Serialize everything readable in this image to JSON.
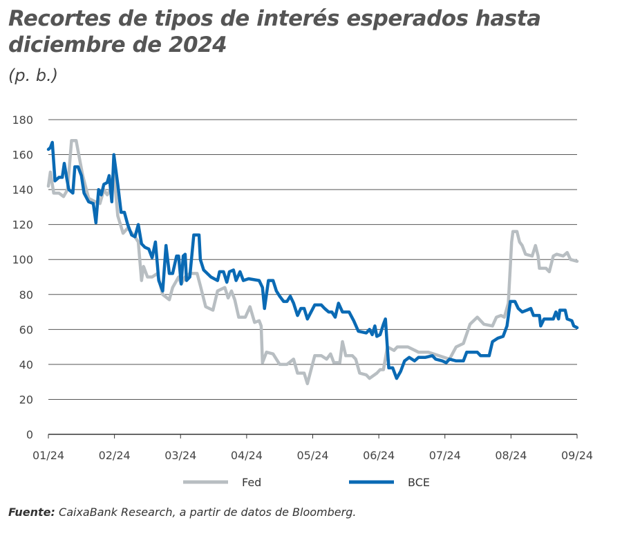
{
  "chart_data": {
    "type": "line",
    "title": "Recortes de tipos de interés esperados hasta diciembre de 2024",
    "unit": "(p. b.)",
    "xlabel": "",
    "ylabel": "",
    "ylim": [
      0,
      180
    ],
    "yticks": [
      0,
      20,
      40,
      60,
      80,
      100,
      120,
      140,
      160,
      180
    ],
    "x_unit": "months since 01/24",
    "xlim": [
      0,
      8
    ],
    "xtick_labels": [
      "01/24",
      "02/24",
      "03/24",
      "04/24",
      "05/24",
      "06/24",
      "07/24",
      "08/24",
      "09/24"
    ],
    "grid": true,
    "legend_position": "bottom",
    "series": [
      {
        "name": "Fed",
        "color": "#b8bec2",
        "points": [
          [
            0,
            142
          ],
          [
            0.03,
            150
          ],
          [
            0.08,
            138
          ],
          [
            0.16,
            138
          ],
          [
            0.23,
            136
          ],
          [
            0.29,
            140
          ],
          [
            0.35,
            168
          ],
          [
            0.42,
            168
          ],
          [
            0.47,
            158
          ],
          [
            0.52,
            148
          ],
          [
            0.61,
            135
          ],
          [
            0.71,
            133
          ],
          [
            0.78,
            132
          ],
          [
            0.84,
            140
          ],
          [
            0.89,
            137
          ],
          [
            0.94,
            140
          ],
          [
            0.99,
            150
          ],
          [
            1.05,
            125
          ],
          [
            1.13,
            115
          ],
          [
            1.2,
            118
          ],
          [
            1.31,
            113
          ],
          [
            1.36,
            110
          ],
          [
            1.41,
            88
          ],
          [
            1.44,
            96
          ],
          [
            1.5,
            90
          ],
          [
            1.57,
            90
          ],
          [
            1.65,
            92
          ],
          [
            1.73,
            80
          ],
          [
            1.83,
            77
          ],
          [
            1.88,
            84
          ],
          [
            1.97,
            90
          ],
          [
            2.01,
            86
          ],
          [
            2.07,
            90
          ],
          [
            2.14,
            92
          ],
          [
            2.25,
            92
          ],
          [
            2.3,
            85
          ],
          [
            2.38,
            73
          ],
          [
            2.49,
            71
          ],
          [
            2.56,
            82
          ],
          [
            2.67,
            84
          ],
          [
            2.72,
            78
          ],
          [
            2.77,
            82
          ],
          [
            2.82,
            77
          ],
          [
            2.88,
            67
          ],
          [
            2.98,
            67
          ],
          [
            3.05,
            73
          ],
          [
            3.12,
            64
          ],
          [
            3.19,
            65
          ],
          [
            3.22,
            62
          ],
          [
            3.24,
            41
          ],
          [
            3.3,
            47
          ],
          [
            3.4,
            46
          ],
          [
            3.5,
            40
          ],
          [
            3.61,
            40
          ],
          [
            3.71,
            43
          ],
          [
            3.77,
            35
          ],
          [
            3.87,
            35
          ],
          [
            3.92,
            29
          ],
          [
            4.03,
            45
          ],
          [
            4.13,
            45
          ],
          [
            4.21,
            43
          ],
          [
            4.27,
            46
          ],
          [
            4.32,
            41
          ],
          [
            4.41,
            41
          ],
          [
            4.45,
            53
          ],
          [
            4.5,
            45
          ],
          [
            4.6,
            45
          ],
          [
            4.65,
            43
          ],
          [
            4.71,
            35
          ],
          [
            4.81,
            34
          ],
          [
            4.86,
            32
          ],
          [
            4.97,
            35
          ],
          [
            5.02,
            37
          ],
          [
            5.07,
            37
          ],
          [
            5.13,
            50
          ],
          [
            5.23,
            48
          ],
          [
            5.28,
            50
          ],
          [
            5.44,
            50
          ],
          [
            5.6,
            47
          ],
          [
            5.75,
            47
          ],
          [
            5.91,
            45
          ],
          [
            6.07,
            43
          ],
          [
            6.17,
            50
          ],
          [
            6.28,
            52
          ],
          [
            6.38,
            63
          ],
          [
            6.49,
            67
          ],
          [
            6.59,
            63
          ],
          [
            6.72,
            62
          ],
          [
            6.78,
            67
          ],
          [
            6.85,
            68
          ],
          [
            6.9,
            67
          ],
          [
            6.96,
            75
          ],
          [
            7.01,
            110
          ],
          [
            7.03,
            116
          ],
          [
            7.09,
            116
          ],
          [
            7.13,
            110
          ],
          [
            7.17,
            108
          ],
          [
            7.22,
            103
          ],
          [
            7.32,
            102
          ],
          [
            7.37,
            108
          ],
          [
            7.41,
            102
          ],
          [
            7.43,
            95
          ],
          [
            7.53,
            95
          ],
          [
            7.58,
            93
          ],
          [
            7.64,
            102
          ],
          [
            7.69,
            103
          ],
          [
            7.79,
            102
          ],
          [
            7.85,
            104
          ],
          [
            7.9,
            100
          ],
          [
            8,
            99
          ]
        ]
      },
      {
        "name": "BCE",
        "color": "#0a6ab4",
        "points": [
          [
            0,
            163
          ],
          [
            0.03,
            164
          ],
          [
            0.06,
            167
          ],
          [
            0.1,
            145
          ],
          [
            0.16,
            147
          ],
          [
            0.21,
            147
          ],
          [
            0.24,
            155
          ],
          [
            0.28,
            146
          ],
          [
            0.31,
            140
          ],
          [
            0.37,
            138
          ],
          [
            0.4,
            153
          ],
          [
            0.45,
            153
          ],
          [
            0.5,
            148
          ],
          [
            0.54,
            138
          ],
          [
            0.61,
            133
          ],
          [
            0.68,
            132
          ],
          [
            0.72,
            121
          ],
          [
            0.76,
            140
          ],
          [
            0.8,
            137
          ],
          [
            0.84,
            143
          ],
          [
            0.89,
            144
          ],
          [
            0.92,
            148
          ],
          [
            0.96,
            133
          ],
          [
            0.99,
            160
          ],
          [
            1.05,
            143
          ],
          [
            1.1,
            127
          ],
          [
            1.15,
            127
          ],
          [
            1.2,
            120
          ],
          [
            1.26,
            114
          ],
          [
            1.31,
            113
          ],
          [
            1.36,
            120
          ],
          [
            1.41,
            109
          ],
          [
            1.46,
            107
          ],
          [
            1.52,
            106
          ],
          [
            1.57,
            101
          ],
          [
            1.62,
            110
          ],
          [
            1.67,
            88
          ],
          [
            1.73,
            82
          ],
          [
            1.78,
            108
          ],
          [
            1.83,
            92
          ],
          [
            1.88,
            92
          ],
          [
            1.94,
            102
          ],
          [
            1.97,
            102
          ],
          [
            2.01,
            86
          ],
          [
            2.04,
            102
          ],
          [
            2.07,
            103
          ],
          [
            2.09,
            88
          ],
          [
            2.14,
            90
          ],
          [
            2.2,
            114
          ],
          [
            2.28,
            114
          ],
          [
            2.3,
            100
          ],
          [
            2.35,
            94
          ],
          [
            2.46,
            90
          ],
          [
            2.56,
            88
          ],
          [
            2.59,
            93
          ],
          [
            2.65,
            93
          ],
          [
            2.7,
            87
          ],
          [
            2.74,
            93
          ],
          [
            2.8,
            94
          ],
          [
            2.84,
            88
          ],
          [
            2.9,
            93
          ],
          [
            2.95,
            88
          ],
          [
            3.03,
            89
          ],
          [
            3.19,
            88
          ],
          [
            3.24,
            84
          ],
          [
            3.27,
            72
          ],
          [
            3.33,
            88
          ],
          [
            3.4,
            88
          ],
          [
            3.45,
            82
          ],
          [
            3.5,
            79
          ],
          [
            3.56,
            76
          ],
          [
            3.61,
            76
          ],
          [
            3.66,
            79
          ],
          [
            3.71,
            75
          ],
          [
            3.77,
            68
          ],
          [
            3.82,
            72
          ],
          [
            3.87,
            72
          ],
          [
            3.92,
            66
          ],
          [
            4.03,
            74
          ],
          [
            4.13,
            74
          ],
          [
            4.18,
            72
          ],
          [
            4.24,
            70
          ],
          [
            4.29,
            70
          ],
          [
            4.34,
            67
          ],
          [
            4.39,
            75
          ],
          [
            4.45,
            70
          ],
          [
            4.55,
            70
          ],
          [
            4.62,
            65
          ],
          [
            4.69,
            59
          ],
          [
            4.81,
            58
          ],
          [
            4.86,
            60
          ],
          [
            4.9,
            57
          ],
          [
            4.94,
            62
          ],
          [
            4.97,
            56
          ],
          [
            5.02,
            57
          ],
          [
            5.07,
            63
          ],
          [
            5.1,
            66
          ],
          [
            5.15,
            38
          ],
          [
            5.21,
            38
          ],
          [
            5.27,
            32
          ],
          [
            5.33,
            36
          ],
          [
            5.39,
            42
          ],
          [
            5.46,
            44
          ],
          [
            5.54,
            42
          ],
          [
            5.6,
            44
          ],
          [
            5.7,
            44
          ],
          [
            5.81,
            45
          ],
          [
            5.86,
            43
          ],
          [
            5.96,
            42
          ],
          [
            6.02,
            41
          ],
          [
            6.07,
            43
          ],
          [
            6.17,
            42
          ],
          [
            6.28,
            42
          ],
          [
            6.33,
            47
          ],
          [
            6.43,
            47
          ],
          [
            6.49,
            47
          ],
          [
            6.54,
            45
          ],
          [
            6.59,
            45
          ],
          [
            6.67,
            45
          ],
          [
            6.72,
            53
          ],
          [
            6.8,
            55
          ],
          [
            6.88,
            56
          ],
          [
            6.94,
            62
          ],
          [
            6.99,
            76
          ],
          [
            7.06,
            76
          ],
          [
            7.11,
            72
          ],
          [
            7.17,
            70
          ],
          [
            7.24,
            71
          ],
          [
            7.3,
            72
          ],
          [
            7.34,
            68
          ],
          [
            7.43,
            68
          ],
          [
            7.45,
            62
          ],
          [
            7.5,
            66
          ],
          [
            7.58,
            66
          ],
          [
            7.64,
            66
          ],
          [
            7.68,
            70
          ],
          [
            7.72,
            66
          ],
          [
            7.74,
            71
          ],
          [
            7.82,
            71
          ],
          [
            7.85,
            66
          ],
          [
            7.92,
            65
          ],
          [
            7.95,
            62
          ],
          [
            8,
            61
          ]
        ]
      }
    ]
  },
  "source": {
    "label": "Fuente:",
    "text": " CaixaBank Research, a partir de datos de Bloomberg."
  }
}
